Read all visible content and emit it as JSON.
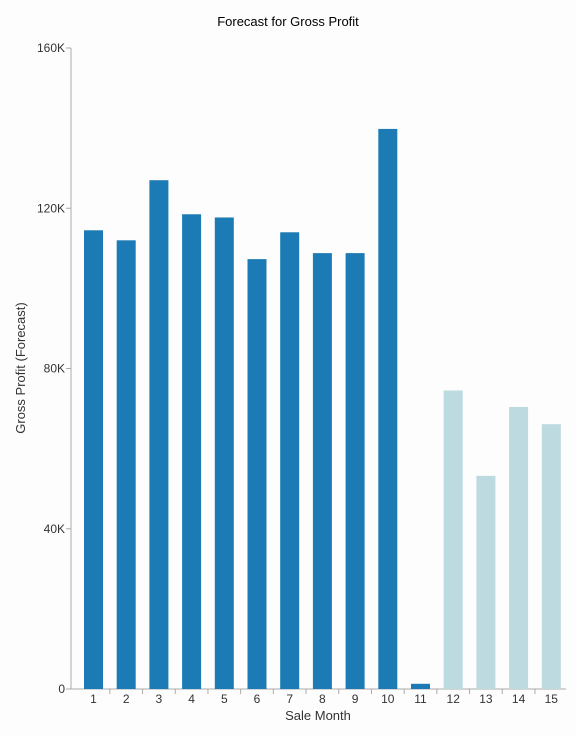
{
  "chart_data": {
    "type": "bar",
    "title": "Forecast for Gross Profit",
    "xlabel": "Sale Month",
    "ylabel": "Gross Profit (Forecast)",
    "ylim": [
      0,
      160000
    ],
    "y_ticks": [
      {
        "value": 0,
        "label": "0"
      },
      {
        "value": 40000,
        "label": "40K"
      },
      {
        "value": 80000,
        "label": "80K"
      },
      {
        "value": 120000,
        "label": "120K"
      },
      {
        "value": 160000,
        "label": "160K"
      }
    ],
    "grid": false,
    "categories": [
      "1",
      "2",
      "3",
      "4",
      "5",
      "6",
      "7",
      "8",
      "9",
      "10",
      "11",
      "12",
      "13",
      "14",
      "15"
    ],
    "values": [
      114500,
      112000,
      127000,
      118500,
      117700,
      107300,
      114000,
      108800,
      108800,
      139800,
      1300,
      74500,
      53200,
      70400,
      66100
    ],
    "bar_colors": [
      "#1c7ab5",
      "#1c7ab5",
      "#1c7ab5",
      "#1c7ab5",
      "#1c7ab5",
      "#1c7ab5",
      "#1c7ab5",
      "#1c7ab5",
      "#1c7ab5",
      "#1c7ab5",
      "#1c7ab5",
      "#bcdadf",
      "#bcdadf",
      "#bcdadf",
      "#bcdadf"
    ],
    "axis_color": "#aaaaaa"
  }
}
